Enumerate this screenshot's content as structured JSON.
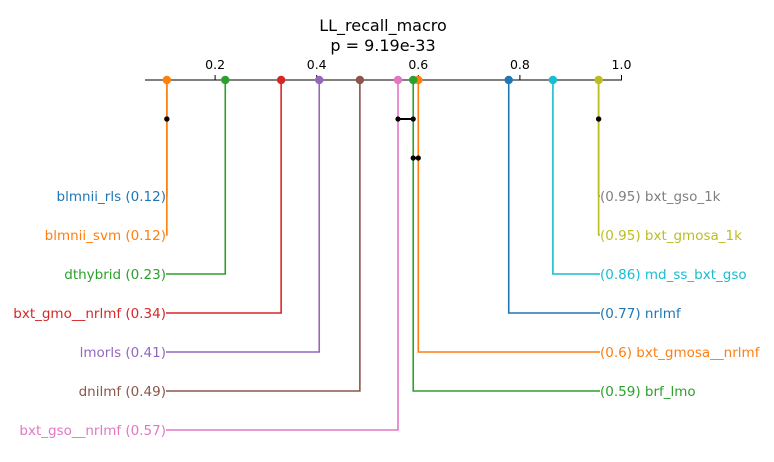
{
  "chart_data": {
    "type": "critical-difference-diagram",
    "title": "LL_recall_macro",
    "subtitle": "p = 9.19e-33",
    "xlim": [
      0.05,
      1.0
    ],
    "ticks": [
      {
        "value": 0.2,
        "label": "0.2"
      },
      {
        "value": 0.4,
        "label": "0.4"
      },
      {
        "value": 0.6,
        "label": "0.6"
      },
      {
        "value": 0.8,
        "label": "0.8"
      },
      {
        "value": 1.0,
        "label": "1.0"
      }
    ],
    "left_methods": [
      {
        "name": "blmnii_rls",
        "value": 0.12,
        "label": "blmnii_rls (0.12)",
        "color": "#1f77b4",
        "dot_x": 0.105,
        "hidden_dot": true
      },
      {
        "name": "blmnii_svm",
        "value": 0.12,
        "label": "blmnii_svm (0.12)",
        "color": "#ff7f0e",
        "dot_x": 0.105
      },
      {
        "name": "dthybrid",
        "value": 0.23,
        "label": "dthybrid (0.23)",
        "color": "#2ca02c",
        "dot_x": 0.22
      },
      {
        "name": "bxt_gmo__nrlmf",
        "value": 0.34,
        "label": "bxt_gmo__nrlmf (0.34)",
        "color": "#d62728",
        "dot_x": 0.33
      },
      {
        "name": "lmorls",
        "value": 0.41,
        "label": "lmorls (0.41)",
        "color": "#9467bd",
        "dot_x": 0.405
      },
      {
        "name": "dnilmf",
        "value": 0.49,
        "label": "dnilmf (0.49)",
        "color": "#8c564b",
        "dot_x": 0.485
      },
      {
        "name": "bxt_gso__nrlmf",
        "value": 0.57,
        "label": "bxt_gso__nrlmf (0.57)",
        "color": "#e377c2",
        "dot_x": 0.56
      }
    ],
    "right_methods": [
      {
        "name": "bxt_gso_1k",
        "value": 0.95,
        "label": "(0.95) bxt_gso_1k",
        "color": "#7f7f7f",
        "dot_x": 0.955,
        "hidden_dot": true
      },
      {
        "name": "bxt_gmosa_1k",
        "value": 0.95,
        "label": "(0.95) bxt_gmosa_1k",
        "color": "#bcbd22",
        "dot_x": 0.955
      },
      {
        "name": "md_ss_bxt_gso",
        "value": 0.86,
        "label": "(0.86) md_ss_bxt_gso",
        "color": "#17becf",
        "dot_x": 0.865
      },
      {
        "name": "nrlmf",
        "value": 0.77,
        "label": "(0.77) nrlmf",
        "color": "#1f77b4",
        "dot_x": 0.778
      },
      {
        "name": "bxt_gmosa__nrlmf",
        "value": 0.6,
        "label": "(0.6) bxt_gmosa__nrlmf",
        "color": "#ff7f0e",
        "dot_x": 0.6
      },
      {
        "name": "brf_lmo",
        "value": 0.59,
        "label": "(0.59) brf_lmo",
        "color": "#2ca02c",
        "dot_x": 0.59
      }
    ],
    "cliques": [
      {
        "x1": 0.105,
        "x2": 0.105
      },
      {
        "x1": 0.56,
        "x2": 0.59
      },
      {
        "x1": 0.955,
        "x2": 0.955
      },
      {
        "x1": 0.59,
        "x2": 0.6
      }
    ]
  }
}
